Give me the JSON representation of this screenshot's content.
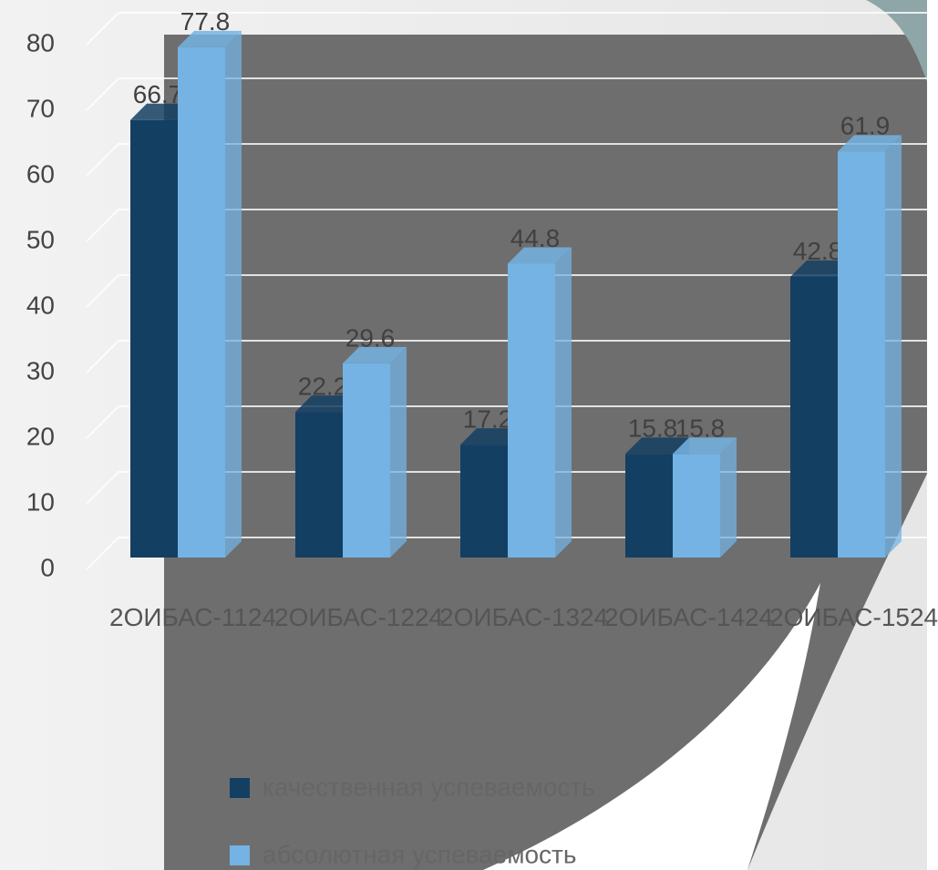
{
  "chart_data": {
    "type": "bar3d",
    "categories": [
      "2ОИБАС-1124",
      "2ОИБАС-1224",
      "2ОИБАС-1324",
      "2ОИБАС-1424",
      "2ОИБАС-1524"
    ],
    "series": [
      {
        "name": "качественная успеваемость",
        "color": "#133f63",
        "values": [
          66.7,
          22.2,
          17.2,
          15.8,
          42.8
        ]
      },
      {
        "name": "абсолютная успеваемость",
        "color": "#74b3e3",
        "values": [
          77.8,
          29.6,
          44.8,
          15.8,
          61.9
        ]
      }
    ],
    "ylim": [
      0,
      80
    ],
    "yticks": [
      0,
      10,
      20,
      30,
      40,
      50,
      60,
      70,
      80
    ],
    "grid": true
  }
}
